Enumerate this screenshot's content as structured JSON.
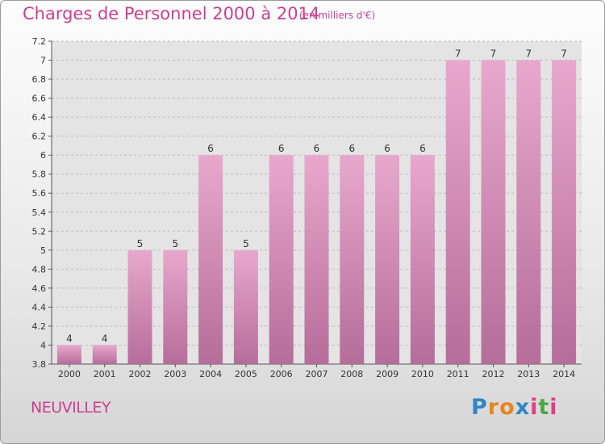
{
  "title": "Charges de Personnel 2000 à 2014",
  "subtitle": "(en milliers d'€)",
  "footer": {
    "place": "NEUVILLEY",
    "logo_letters": [
      "P",
      "r",
      "o",
      "x",
      "i",
      "t",
      "i"
    ],
    "logo_colors": [
      "#2e86c8",
      "#e8851e",
      "#e8851e",
      "#2e86c8",
      "#e23c8a",
      "#4aa74a",
      "#e23c8a"
    ]
  },
  "colors": {
    "bar": "#d67fb4",
    "bar_top": "#e8a8cc",
    "text": "#333333",
    "accent": "#cc3f8f"
  },
  "chart_data": {
    "type": "bar",
    "categories": [
      "2000",
      "2001",
      "2002",
      "2003",
      "2004",
      "2005",
      "2006",
      "2007",
      "2008",
      "2009",
      "2010",
      "2011",
      "2012",
      "2013",
      "2014"
    ],
    "values": [
      4,
      4,
      5,
      5,
      6,
      5,
      6,
      6,
      6,
      6,
      6,
      7,
      7,
      7,
      7
    ],
    "data_labels": [
      "4",
      "4",
      "5",
      "5",
      "6",
      "5",
      "6",
      "6",
      "6",
      "6",
      "6",
      "7",
      "7",
      "7",
      "7"
    ],
    "ylim": [
      3.8,
      7.2
    ],
    "yticks": [
      3.8,
      4,
      4.2,
      4.4,
      4.6,
      4.8,
      5,
      5.2,
      5.4,
      5.6,
      5.8,
      6,
      6.2,
      6.4,
      6.6,
      6.8,
      7,
      7.2
    ],
    "ytick_labels": [
      "3.8",
      "4",
      "4.2",
      "4.4",
      "4.6",
      "4.8",
      "5",
      "5.2",
      "5.4",
      "5.6",
      "5.8",
      "6",
      "6.2",
      "6.4",
      "6.6",
      "6.8",
      "7",
      "7.2"
    ],
    "grid": "horizontal dashed",
    "legend": "none"
  }
}
